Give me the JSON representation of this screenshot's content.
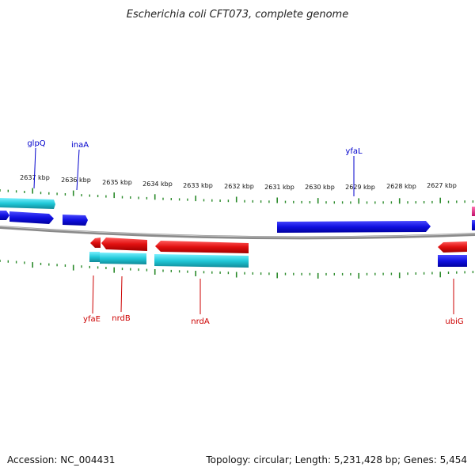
{
  "title": "Escherichia coli CFT073, complete genome",
  "footer": {
    "accession": "Accession: NC_004431",
    "topology": "Topology: circular; Length: 5,231,428 bp; Genes: 5,454"
  },
  "colors": {
    "forward_gene": "#1010e0",
    "forward_gene_light": "#3a3aff",
    "reverse_gene": "#e01010",
    "reverse_gene_light": "#ff3a3a",
    "cog_cyan": "#20c8d8",
    "backbone": "#8a8a8a",
    "tick": "#2a8a2a",
    "label_blue": "#0000cc",
    "label_red": "#cc0000",
    "magenta": "#e0207a"
  },
  "tick_labels": [
    "2637 kbp",
    "2636 kbp",
    "2635 kbp",
    "2634 kbp",
    "2633 kbp",
    "2632 kbp",
    "2631 kbp",
    "2630 kbp",
    "2629 kbp",
    "2628 kbp",
    "2627 kbp"
  ],
  "forward_labels": [
    "glpQ",
    "inaA",
    "yfaL"
  ],
  "reverse_labels": [
    "yfaE",
    "nrdB",
    "nrdA",
    "ubiG"
  ]
}
